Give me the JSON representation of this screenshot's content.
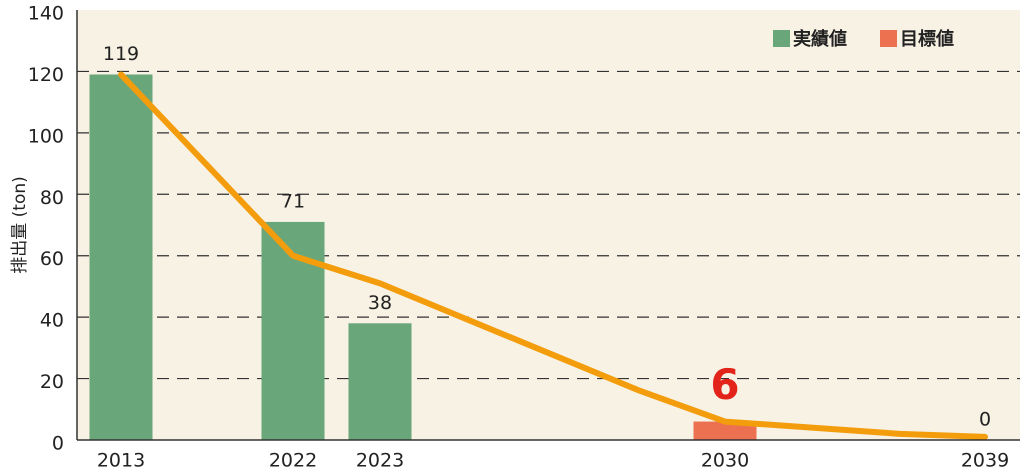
{
  "chart_data": {
    "type": "bar",
    "y_label": "排出量 (ton)",
    "categories": [
      "2013",
      "2022",
      "2023",
      null,
      "2030",
      null,
      "2039"
    ],
    "series": [
      {
        "name": "実績値",
        "color": "#69a67a",
        "values": [
          119,
          71,
          38,
          null,
          null,
          null,
          null
        ]
      },
      {
        "name": "目標値",
        "color": "#eb7150",
        "values": [
          null,
          null,
          null,
          null,
          6,
          null,
          0
        ],
        "value_label_colors": [
          null,
          null,
          null,
          null,
          "#e3241b",
          null,
          "#222222"
        ]
      }
    ],
    "line": {
      "color": "#f39c0c",
      "values": [
        119,
        60,
        51,
        16,
        6,
        2,
        1
      ]
    },
    "ylim": [
      0,
      140
    ],
    "yticks": [
      0,
      20,
      40,
      60,
      80,
      100,
      120,
      140
    ],
    "grid": true
  }
}
